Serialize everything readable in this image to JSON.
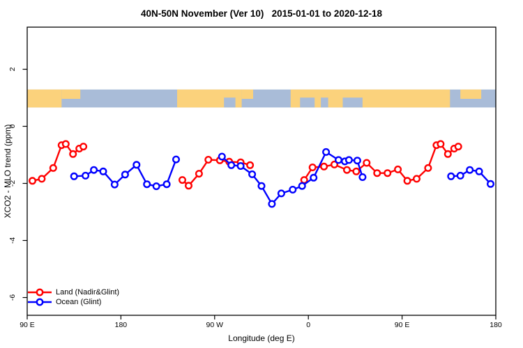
{
  "chart_data": {
    "type": "line",
    "title": "40N-50N November (Ver 10)   2015-01-01 to 2020-12-18",
    "xlabel": "Longitude (deg E)",
    "ylabel": "XCO2 - MLO trend (ppm)",
    "x_axis": {
      "range_deg": [
        90,
        540
      ],
      "ticks": [
        {
          "deg": 90,
          "label": "90 E"
        },
        {
          "deg": 180,
          "label": "180"
        },
        {
          "deg": 270,
          "label": "90 W"
        },
        {
          "deg": 360,
          "label": "0"
        },
        {
          "deg": 450,
          "label": "90 E"
        },
        {
          "deg": 540,
          "label": "180"
        }
      ]
    },
    "y_axis": {
      "range": [
        -6.6,
        3.5
      ],
      "ticks": [
        {
          "value": 2,
          "label": "2"
        },
        {
          "value": 0,
          "label": "0"
        },
        {
          "value": -2,
          "label": "-2"
        },
        {
          "value": -4,
          "label": "-4"
        },
        {
          "value": -6,
          "label": "-6"
        }
      ]
    },
    "map_band": {
      "top_value": 1.29,
      "bottom_value": 0.66,
      "ocean_color": "#A9BCD8",
      "land_color": "#FBD27C",
      "ocean_span_deg": [
        90,
        540
      ],
      "land_full_deg": [
        [
          90,
          123
        ],
        [
          234,
          296
        ],
        [
          343,
          496
        ]
      ],
      "land_top_deg": [
        [
          123,
          141
        ],
        [
          296,
          307
        ],
        [
          506,
          526
        ]
      ],
      "ocean_inlets_deg": [
        [
          279,
          290
        ],
        [
          352,
          366
        ],
        [
          372,
          379
        ],
        [
          393,
          412
        ]
      ]
    },
    "series": [
      {
        "name": "Land (Nadir&Glint)",
        "color": "#FF0000",
        "segments": [
          [
            [
              95,
              -1.91
            ],
            [
              104,
              -1.84
            ],
            [
              115,
              -1.46
            ],
            [
              123,
              -0.66
            ],
            [
              127,
              -0.62
            ],
            [
              134,
              -0.97
            ],
            [
              140,
              -0.78
            ],
            [
              144,
              -0.71
            ]
          ],
          [
            [
              239,
              -1.88
            ],
            [
              245,
              -2.08
            ],
            [
              255,
              -1.66
            ],
            [
              264,
              -1.17
            ],
            [
              275,
              -1.19
            ],
            [
              284,
              -1.24
            ],
            [
              295,
              -1.26
            ],
            [
              304,
              -1.36
            ]
          ],
          [
            [
              356,
              -1.88
            ],
            [
              364,
              -1.44
            ],
            [
              375,
              -1.41
            ],
            [
              385,
              -1.34
            ],
            [
              397,
              -1.53
            ],
            [
              406,
              -1.58
            ],
            [
              416,
              -1.28
            ],
            [
              426,
              -1.64
            ],
            [
              436,
              -1.64
            ],
            [
              446,
              -1.51
            ],
            [
              455,
              -1.91
            ],
            [
              464,
              -1.84
            ],
            [
              475,
              -1.46
            ],
            [
              483,
              -0.66
            ],
            [
              487,
              -0.62
            ],
            [
              494,
              -0.97
            ],
            [
              500,
              -0.78
            ],
            [
              504,
              -0.71
            ]
          ]
        ]
      },
      {
        "name": "Ocean (Glint)",
        "color": "#0000FF",
        "segments": [
          [
            [
              135,
              -1.75
            ],
            [
              146,
              -1.73
            ],
            [
              154,
              -1.53
            ],
            [
              163,
              -1.58
            ],
            [
              174,
              -2.04
            ],
            [
              184,
              -1.69
            ],
            [
              195,
              -1.35
            ],
            [
              205,
              -2.03
            ],
            [
              214,
              -2.1
            ],
            [
              224,
              -2.03
            ],
            [
              233,
              -1.16
            ]
          ],
          [
            [
              277,
              -1.06
            ],
            [
              286,
              -1.36
            ],
            [
              295,
              -1.39
            ],
            [
              306,
              -1.68
            ],
            [
              315,
              -2.09
            ],
            [
              325,
              -2.72
            ],
            [
              334,
              -2.35
            ],
            [
              345,
              -2.22
            ],
            [
              354,
              -2.09
            ],
            [
              365,
              -1.8
            ],
            [
              377,
              -0.9
            ],
            [
              389,
              -1.18
            ],
            [
              395,
              -1.23
            ],
            [
              399,
              -1.18
            ],
            [
              407,
              -1.2
            ],
            [
              412,
              -1.78
            ]
          ],
          [
            [
              497,
              -1.75
            ],
            [
              506,
              -1.73
            ],
            [
              515,
              -1.53
            ],
            [
              524,
              -1.58
            ],
            [
              535,
              -2.02
            ]
          ]
        ]
      }
    ],
    "legend": {
      "position": "bottom-left",
      "entries": [
        {
          "label": "Land (Nadir&Glint)",
          "color": "#FF0000"
        },
        {
          "label": "Ocean (Glint)",
          "color": "#0000FF"
        }
      ]
    }
  }
}
